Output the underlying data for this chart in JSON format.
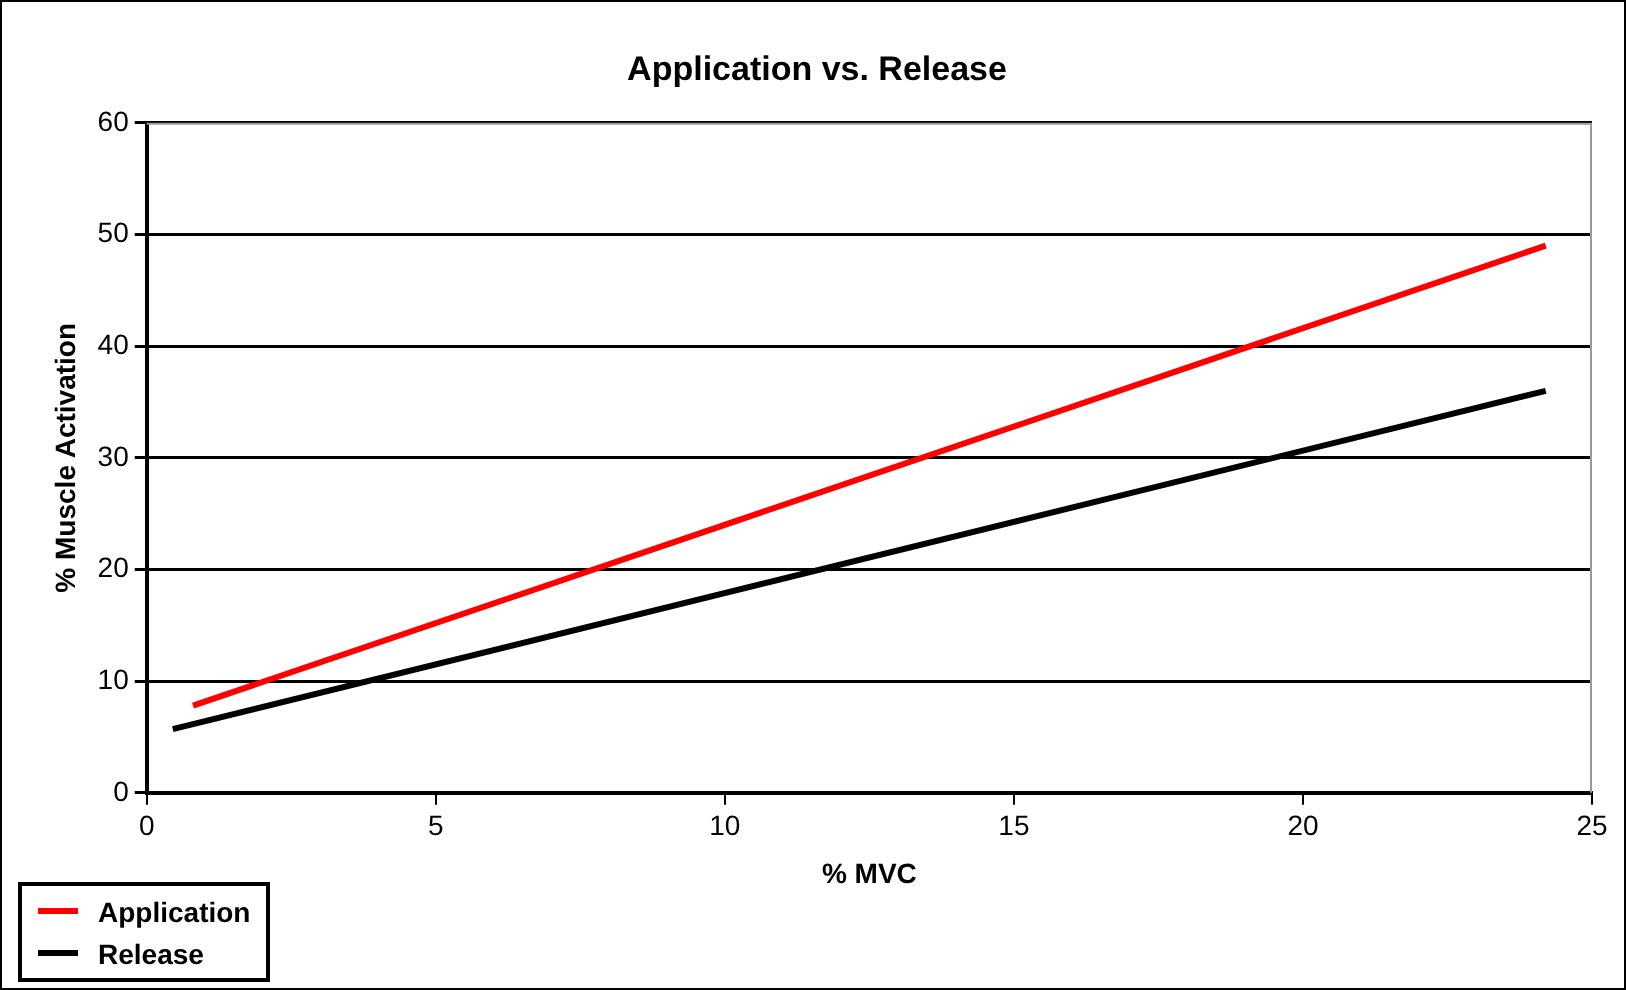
{
  "chart_data": {
    "type": "line",
    "title": "Application vs. Release",
    "xlabel": "% MVC",
    "ylabel": "% Muscle Activation",
    "xlim": [
      0,
      25
    ],
    "xticks": [
      0,
      5,
      10,
      15,
      20,
      25
    ],
    "ylim": [
      0,
      60
    ],
    "yticks": [
      0,
      10,
      20,
      30,
      40,
      50,
      60
    ],
    "series": [
      {
        "name": "Application",
        "color": "#ff0000",
        "x": [
          0.8,
          24.2
        ],
        "values": [
          7.8,
          49
        ]
      },
      {
        "name": "Release",
        "color": "#000000",
        "x": [
          0.45,
          24.2
        ],
        "values": [
          5.7,
          36
        ]
      }
    ],
    "grid": "y",
    "legend": "bottom left",
    "marker": "none",
    "line_style": "solid"
  }
}
